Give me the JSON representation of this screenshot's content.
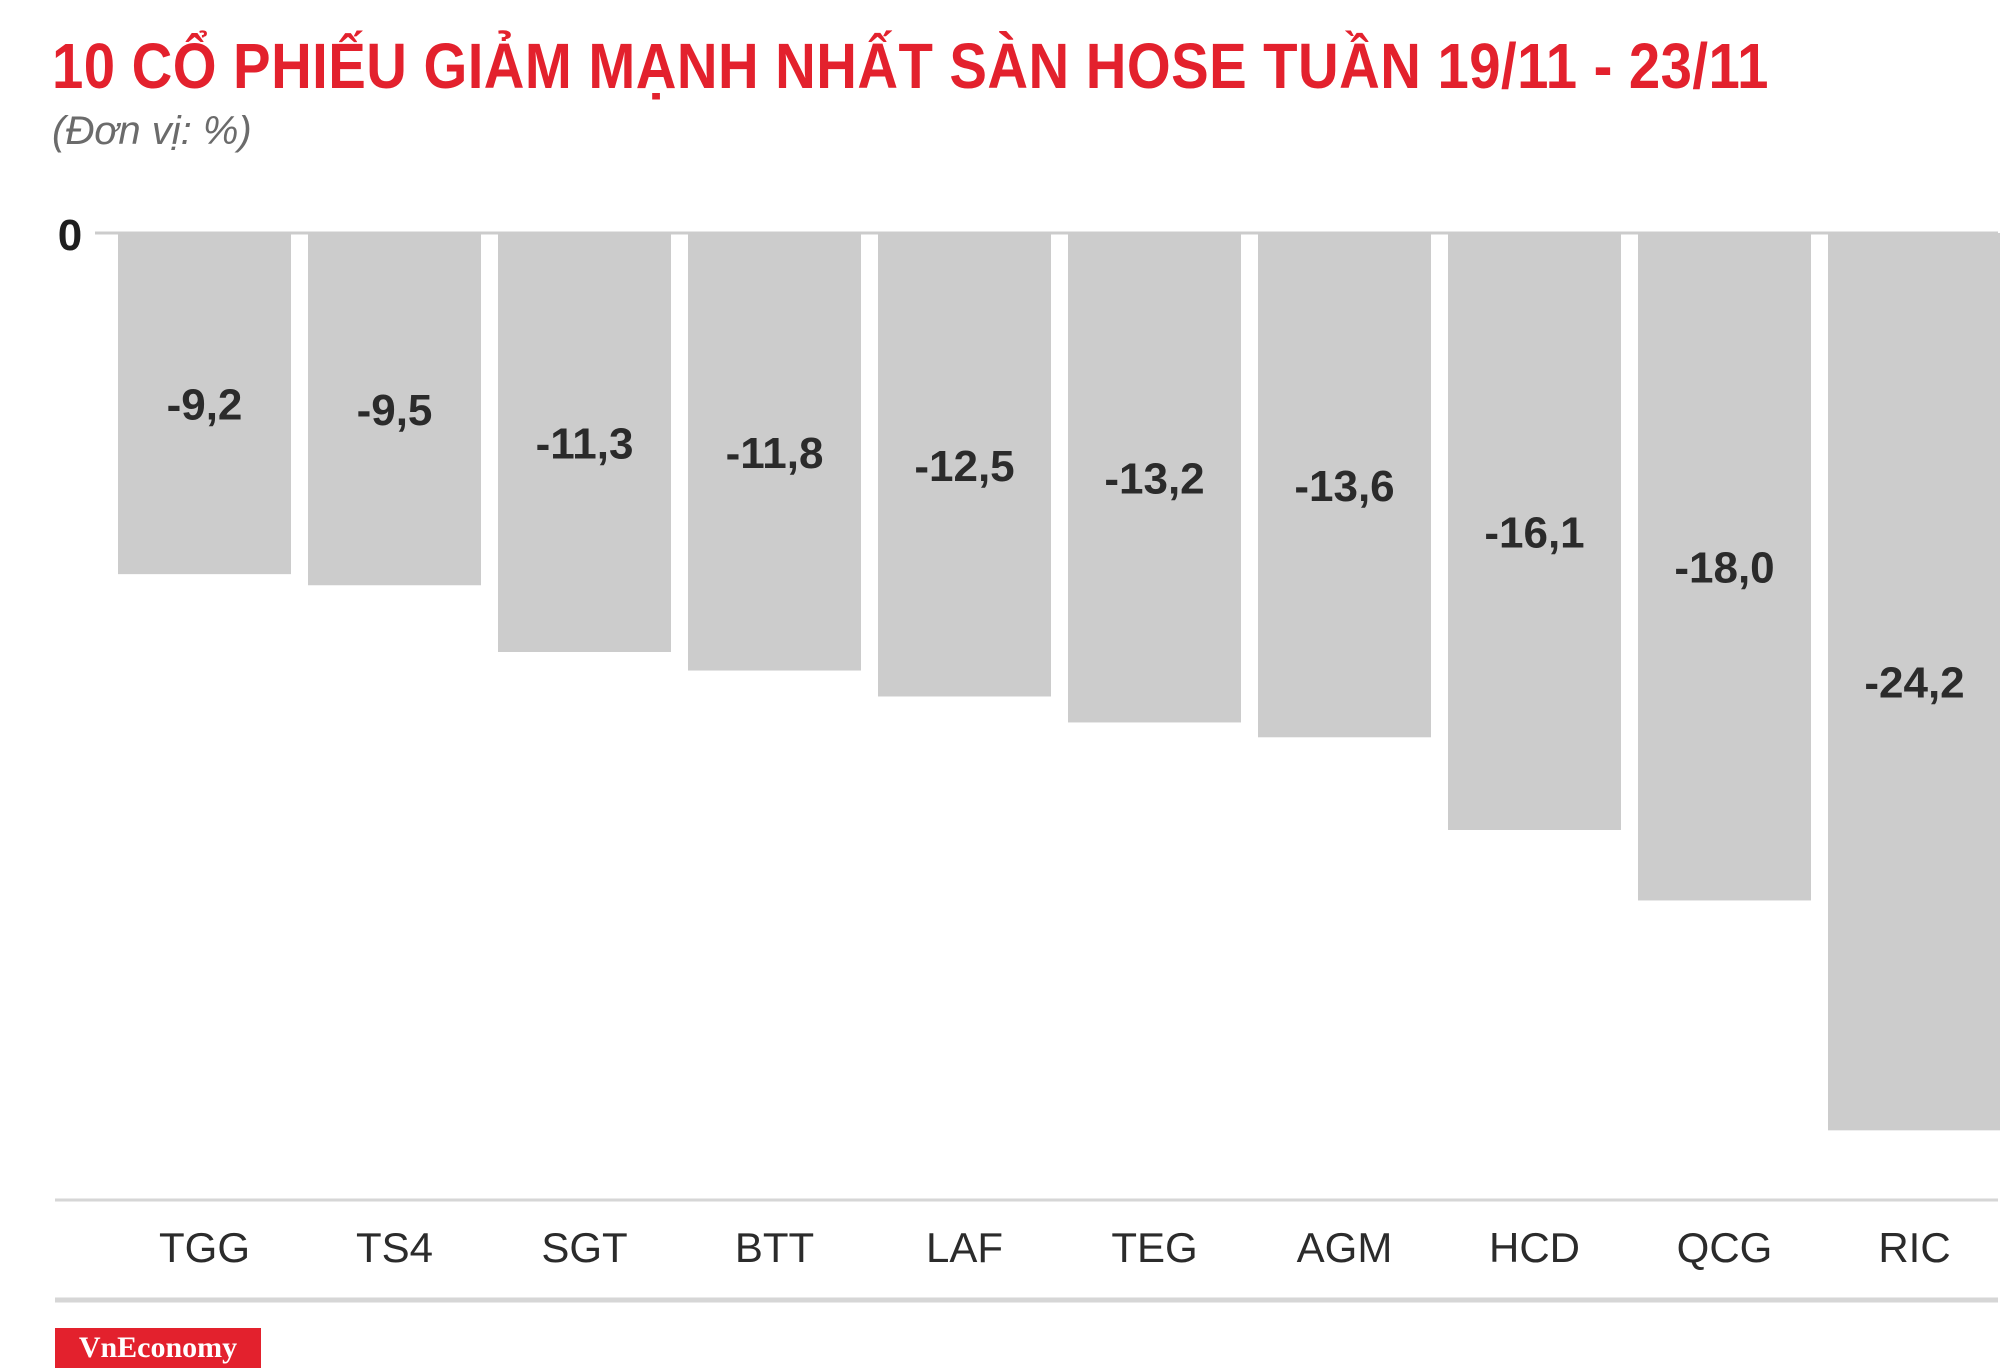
{
  "header": {
    "title": "10 CỔ PHIẾU GIẢM MẠNH NHẤT SÀN HOSE TUẦN 19/11 - 23/11",
    "subtitle": "(Đơn vị: %)"
  },
  "brand": {
    "label": "VnEconomy",
    "color": "#e3212d"
  },
  "chart_data": {
    "type": "bar",
    "title": "10 CỔ PHIẾU GIẢM MẠNH NHẤT SÀN HOSE TUẦN 19/11 - 23/11",
    "subtitle": "(Đơn vị: %)",
    "xlabel": "",
    "ylabel": "",
    "categories": [
      "TGG",
      "TS4",
      "SGT",
      "BTT",
      "LAF",
      "TEG",
      "AGM",
      "HCD",
      "QCG",
      "RIC"
    ],
    "values": [
      -9.2,
      -9.5,
      -11.3,
      -11.8,
      -12.5,
      -13.2,
      -13.6,
      -16.1,
      -18.0,
      -24.2
    ],
    "value_labels": [
      "-9,2",
      "-9,5",
      "-11,3",
      "-11,8",
      "-12,5",
      "-13,2",
      "-13,6",
      "-16,1",
      "-18,0",
      "-24,2"
    ],
    "y_tick_labels": [
      "0"
    ],
    "ylim": [
      -25,
      0
    ],
    "grid": false,
    "legend": "none",
    "bar_color": "#cccccc",
    "label_color": "#2b2b2b",
    "title_color": "#e3212d"
  }
}
